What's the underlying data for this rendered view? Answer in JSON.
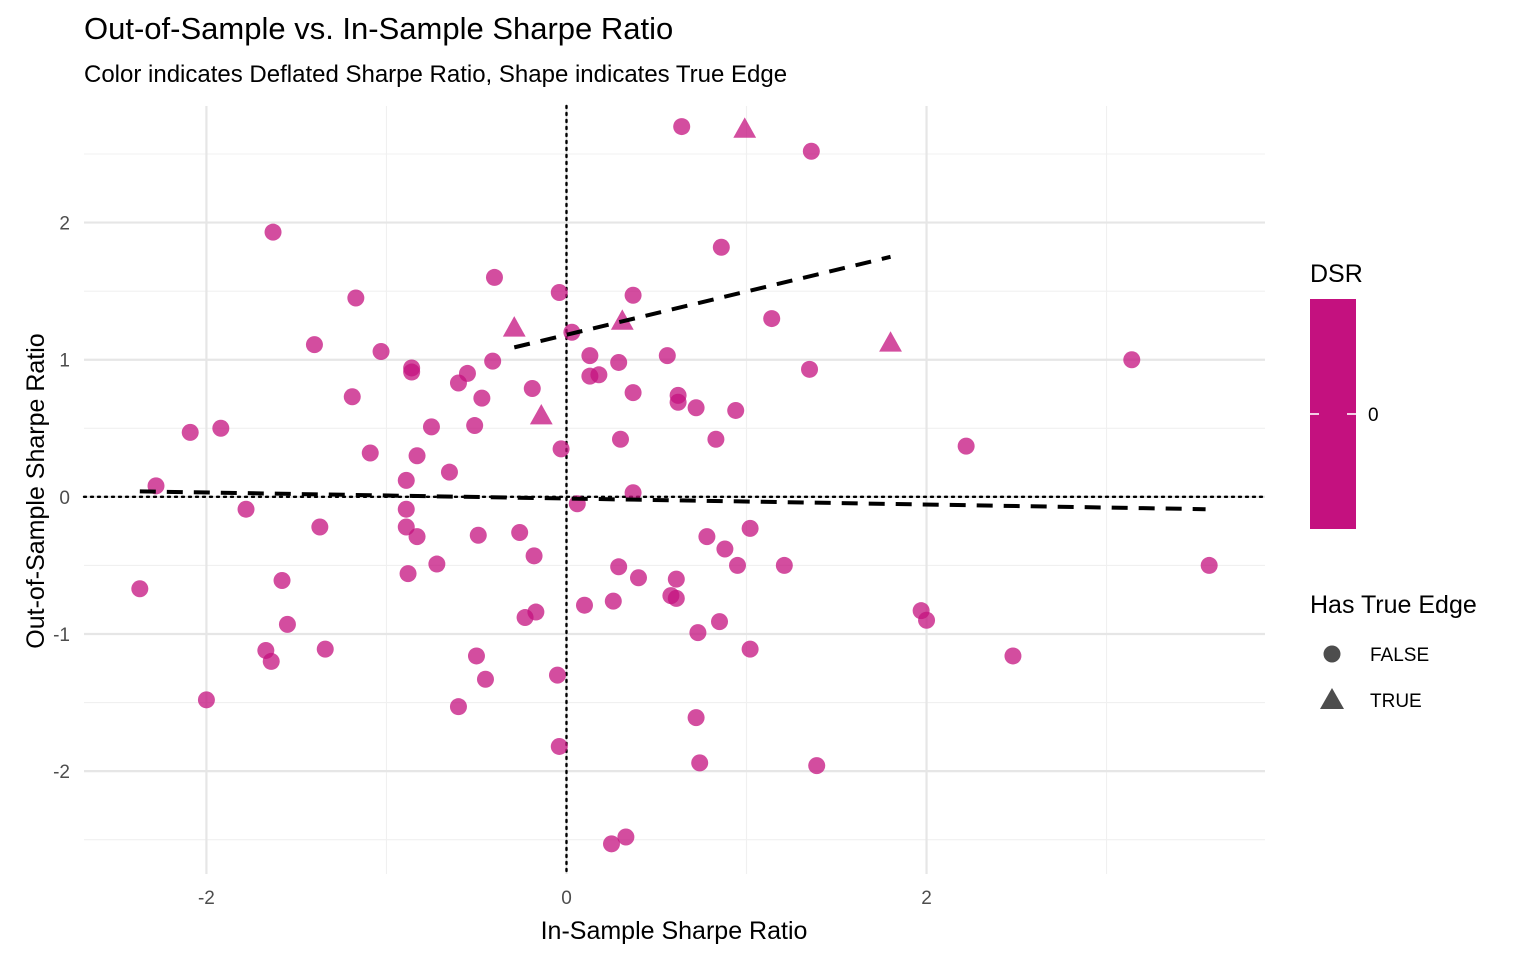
{
  "chart_data": {
    "type": "scatter",
    "title": "Out-of-Sample vs. In-Sample Sharpe Ratio",
    "subtitle": "Color indicates Deflated Sharpe Ratio, Shape indicates True Edge",
    "xlabel": "In-Sample Sharpe Ratio",
    "ylabel": "Out-of-Sample Sharpe Ratio",
    "xlim": [
      -2.68,
      3.88
    ],
    "ylim": [
      -2.75,
      2.85
    ],
    "x_ticks": [
      -2,
      0,
      2
    ],
    "y_ticks": [
      -2,
      -1,
      0,
      1,
      2
    ],
    "grid": true,
    "point_color": "#c4117f",
    "reference_lines": {
      "x_zero": 0,
      "y_zero": 0,
      "style": "dotted"
    },
    "fit_lines": [
      {
        "group": "FALSE",
        "x": [
          -2.37,
          3.55
        ],
        "y": [
          0.04,
          -0.09
        ]
      },
      {
        "group": "TRUE",
        "x": [
          -0.29,
          1.8
        ],
        "y": [
          1.09,
          1.75
        ]
      }
    ],
    "legend": {
      "position": "right",
      "color_title": "DSR",
      "color_value": "#c4117f",
      "color_ticks": [
        "0"
      ],
      "shape_title": "Has True Edge",
      "shape_items": [
        {
          "label": "FALSE",
          "shape": "circle"
        },
        {
          "label": "TRUE",
          "shape": "triangle"
        }
      ]
    },
    "series": [
      {
        "name": "FALSE",
        "shape": "circle",
        "points": [
          [
            0.64,
            2.7
          ],
          [
            1.36,
            2.52
          ],
          [
            -1.63,
            1.93
          ],
          [
            0.86,
            1.82
          ],
          [
            -0.4,
            1.6
          ],
          [
            -0.04,
            1.49
          ],
          [
            0.37,
            1.47
          ],
          [
            -1.17,
            1.45
          ],
          [
            1.14,
            1.3
          ],
          [
            0.03,
            1.2
          ],
          [
            -1.4,
            1.11
          ],
          [
            -1.03,
            1.06
          ],
          [
            0.13,
            1.03
          ],
          [
            0.56,
            1.03
          ],
          [
            3.14,
            1.0
          ],
          [
            -0.41,
            0.99
          ],
          [
            0.29,
            0.98
          ],
          [
            -0.86,
            0.94
          ],
          [
            1.35,
            0.93
          ],
          [
            -0.86,
            0.91
          ],
          [
            -0.55,
            0.9
          ],
          [
            0.18,
            0.89
          ],
          [
            0.13,
            0.88
          ],
          [
            -0.6,
            0.83
          ],
          [
            -0.19,
            0.79
          ],
          [
            0.37,
            0.76
          ],
          [
            0.62,
            0.74
          ],
          [
            -0.47,
            0.72
          ],
          [
            -1.19,
            0.73
          ],
          [
            0.62,
            0.69
          ],
          [
            0.72,
            0.65
          ],
          [
            0.94,
            0.63
          ],
          [
            -0.75,
            0.51
          ],
          [
            -0.51,
            0.52
          ],
          [
            -1.92,
            0.5
          ],
          [
            -2.09,
            0.47
          ],
          [
            0.3,
            0.42
          ],
          [
            0.83,
            0.42
          ],
          [
            2.22,
            0.37
          ],
          [
            -0.03,
            0.35
          ],
          [
            -1.09,
            0.32
          ],
          [
            -0.83,
            0.3
          ],
          [
            -0.65,
            0.18
          ],
          [
            -0.89,
            0.12
          ],
          [
            -2.28,
            0.08
          ],
          [
            0.37,
            0.03
          ],
          [
            0.06,
            -0.05
          ],
          [
            -1.78,
            -0.09
          ],
          [
            -0.89,
            -0.09
          ],
          [
            -0.89,
            -0.22
          ],
          [
            -1.37,
            -0.22
          ],
          [
            1.02,
            -0.23
          ],
          [
            -0.26,
            -0.26
          ],
          [
            -0.49,
            -0.28
          ],
          [
            -0.83,
            -0.29
          ],
          [
            0.78,
            -0.29
          ],
          [
            0.88,
            -0.38
          ],
          [
            -0.18,
            -0.43
          ],
          [
            -0.72,
            -0.49
          ],
          [
            0.95,
            -0.5
          ],
          [
            1.21,
            -0.5
          ],
          [
            0.29,
            -0.51
          ],
          [
            3.57,
            -0.5
          ],
          [
            -0.88,
            -0.56
          ],
          [
            0.4,
            -0.59
          ],
          [
            0.61,
            -0.6
          ],
          [
            -1.58,
            -0.61
          ],
          [
            -2.37,
            -0.67
          ],
          [
            0.58,
            -0.72
          ],
          [
            0.61,
            -0.74
          ],
          [
            0.26,
            -0.76
          ],
          [
            0.1,
            -0.79
          ],
          [
            1.97,
            -0.83
          ],
          [
            -0.17,
            -0.84
          ],
          [
            -0.23,
            -0.88
          ],
          [
            2.0,
            -0.9
          ],
          [
            0.85,
            -0.91
          ],
          [
            -1.55,
            -0.93
          ],
          [
            0.73,
            -0.99
          ],
          [
            1.02,
            -1.11
          ],
          [
            -1.67,
            -1.12
          ],
          [
            -1.34,
            -1.11
          ],
          [
            -0.5,
            -1.16
          ],
          [
            2.48,
            -1.16
          ],
          [
            -1.64,
            -1.2
          ],
          [
            -0.05,
            -1.3
          ],
          [
            -0.45,
            -1.33
          ],
          [
            -2.0,
            -1.48
          ],
          [
            -0.6,
            -1.53
          ],
          [
            0.72,
            -1.61
          ],
          [
            -0.04,
            -1.82
          ],
          [
            0.74,
            -1.94
          ],
          [
            1.39,
            -1.96
          ],
          [
            0.33,
            -2.48
          ],
          [
            0.25,
            -2.53
          ]
        ]
      },
      {
        "name": "TRUE",
        "shape": "triangle",
        "points": [
          [
            0.99,
            2.68
          ],
          [
            -0.29,
            1.23
          ],
          [
            0.31,
            1.28
          ],
          [
            1.8,
            1.12
          ],
          [
            -0.14,
            0.59
          ]
        ]
      }
    ]
  }
}
